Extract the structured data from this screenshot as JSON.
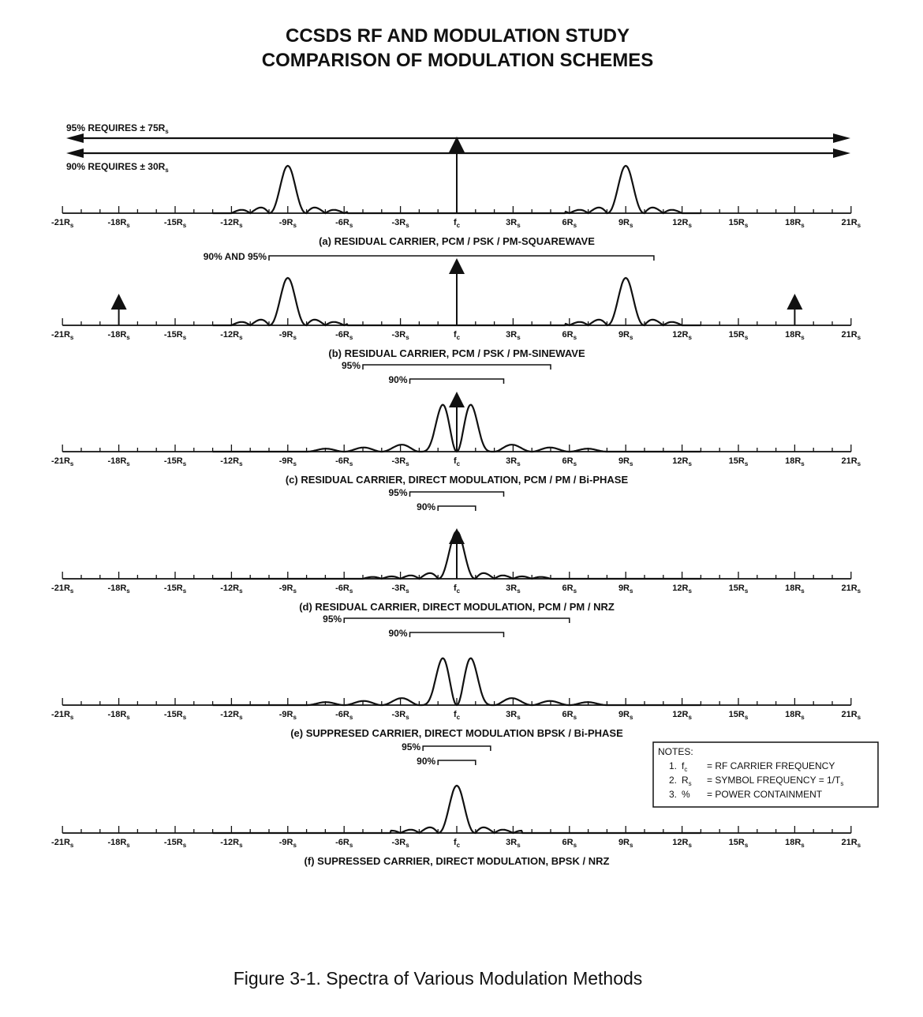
{
  "title": {
    "line1": "CCSDS RF AND MODULATION STUDY",
    "line2": "COMPARISON OF MODULATION SCHEMES"
  },
  "figure_caption": "Figure 3-1.  Spectra of Various Modulation Methods",
  "axis_ticks": [
    {
      "k": -21,
      "label": "-21R",
      "sub": "s"
    },
    {
      "k": -18,
      "label": "-18R",
      "sub": "s"
    },
    {
      "k": -15,
      "label": "-15R",
      "sub": "s"
    },
    {
      "k": -12,
      "label": "-12R",
      "sub": "s"
    },
    {
      "k": -9,
      "label": "-9R",
      "sub": "s"
    },
    {
      "k": -6,
      "label": "-6R",
      "sub": "s"
    },
    {
      "k": -3,
      "label": "-3R",
      "sub": "s"
    },
    {
      "k": 0,
      "label": "f",
      "sub": "c"
    },
    {
      "k": 3,
      "label": "3R",
      "sub": "s"
    },
    {
      "k": 6,
      "label": "6R",
      "sub": "s"
    },
    {
      "k": 9,
      "label": "9R",
      "sub": "s"
    },
    {
      "k": 12,
      "label": "12R",
      "sub": "s"
    },
    {
      "k": 15,
      "label": "15R",
      "sub": "s"
    },
    {
      "k": 18,
      "label": "18R",
      "sub": "s"
    },
    {
      "k": 21,
      "label": "21R",
      "sub": "s"
    }
  ],
  "panels": [
    {
      "id": "a",
      "caption": "(a) RESIDUAL CARRIER, PCM / PSK / PM-SQUAREWAVE",
      "spectrum": "subcarrier",
      "subcarrier_k": 9,
      "carrier": {
        "k": 0,
        "height": 1.55
      },
      "side_carriers": [],
      "requirements": [
        {
          "label": "95% REQUIRES ± 75R",
          "sub": "s"
        },
        {
          "label": "90% REQUIRES ± 30R",
          "sub": "s"
        }
      ],
      "brackets": []
    },
    {
      "id": "b",
      "caption": "(b) RESIDUAL CARRIER, PCM / PSK / PM-SINEWAVE",
      "spectrum": "subcarrier",
      "subcarrier_k": 9,
      "carrier": {
        "k": 0,
        "height": 1.35
      },
      "side_carriers": [
        {
          "k": -18
        },
        {
          "k": 18
        }
      ],
      "requirements": [],
      "brackets": [
        {
          "label": "90% AND 95%",
          "from_k": -10,
          "to_k": 10.5
        }
      ]
    },
    {
      "id": "c",
      "caption": "(c) RESIDUAL CARRIER, DIRECT MODULATION, PCM / PM / Bi-PHASE",
      "spectrum": "biphase",
      "null_k": 1,
      "carrier": {
        "k": 0,
        "height": 1.2
      },
      "side_carriers": [],
      "requirements": [],
      "brackets": [
        {
          "label": "95%",
          "from_k": -5,
          "to_k": 5
        },
        {
          "label": "90%",
          "from_k": -2.5,
          "to_k": 2.5
        }
      ]
    },
    {
      "id": "d",
      "caption": "(d)  RESIDUAL CARRIER, DIRECT MODULATION, PCM / PM / NRZ",
      "spectrum": "nrz",
      "null_k": 1,
      "carrier": {
        "k": 0,
        "height": 1.0
      },
      "side_carriers": [],
      "requirements": [],
      "brackets": [
        {
          "label": "95%",
          "from_k": -2.5,
          "to_k": 2.5
        },
        {
          "label": "90%",
          "from_k": -1,
          "to_k": 1
        }
      ]
    },
    {
      "id": "e",
      "caption": "(e)  SUPPRESED CARRIER, DIRECT MODULATION BPSK / Bi-PHASE",
      "spectrum": "biphase",
      "null_k": 1,
      "carrier": null,
      "side_carriers": [],
      "requirements": [],
      "brackets": [
        {
          "label": "95%",
          "from_k": -6,
          "to_k": 6
        },
        {
          "label": "90%",
          "from_k": -2.5,
          "to_k": 2.5
        }
      ]
    },
    {
      "id": "f",
      "caption": "(f)  SUPRESSED CARRIER, DIRECT MODULATION, BPSK / NRZ",
      "spectrum": "nrz",
      "null_k": 1,
      "carrier": null,
      "side_carriers": [],
      "requirements": [],
      "brackets": [
        {
          "label": "95%",
          "from_k": -1.8,
          "to_k": 1.8
        },
        {
          "label": "90%",
          "from_k": -1,
          "to_k": 1
        }
      ]
    }
  ],
  "notes": {
    "heading": "NOTES:",
    "items": [
      {
        "num": "1.",
        "sym": "f",
        "sub": "c",
        "text": "= RF CARRIER FREQUENCY"
      },
      {
        "num": "2.",
        "sym": "R",
        "sub": "s",
        "text": "= SYMBOL FREQUENCY = 1/T",
        "text_sub": "s"
      },
      {
        "num": "3.",
        "sym": "%",
        "sub": "",
        "text": "= POWER CONTAINMENT"
      }
    ]
  }
}
